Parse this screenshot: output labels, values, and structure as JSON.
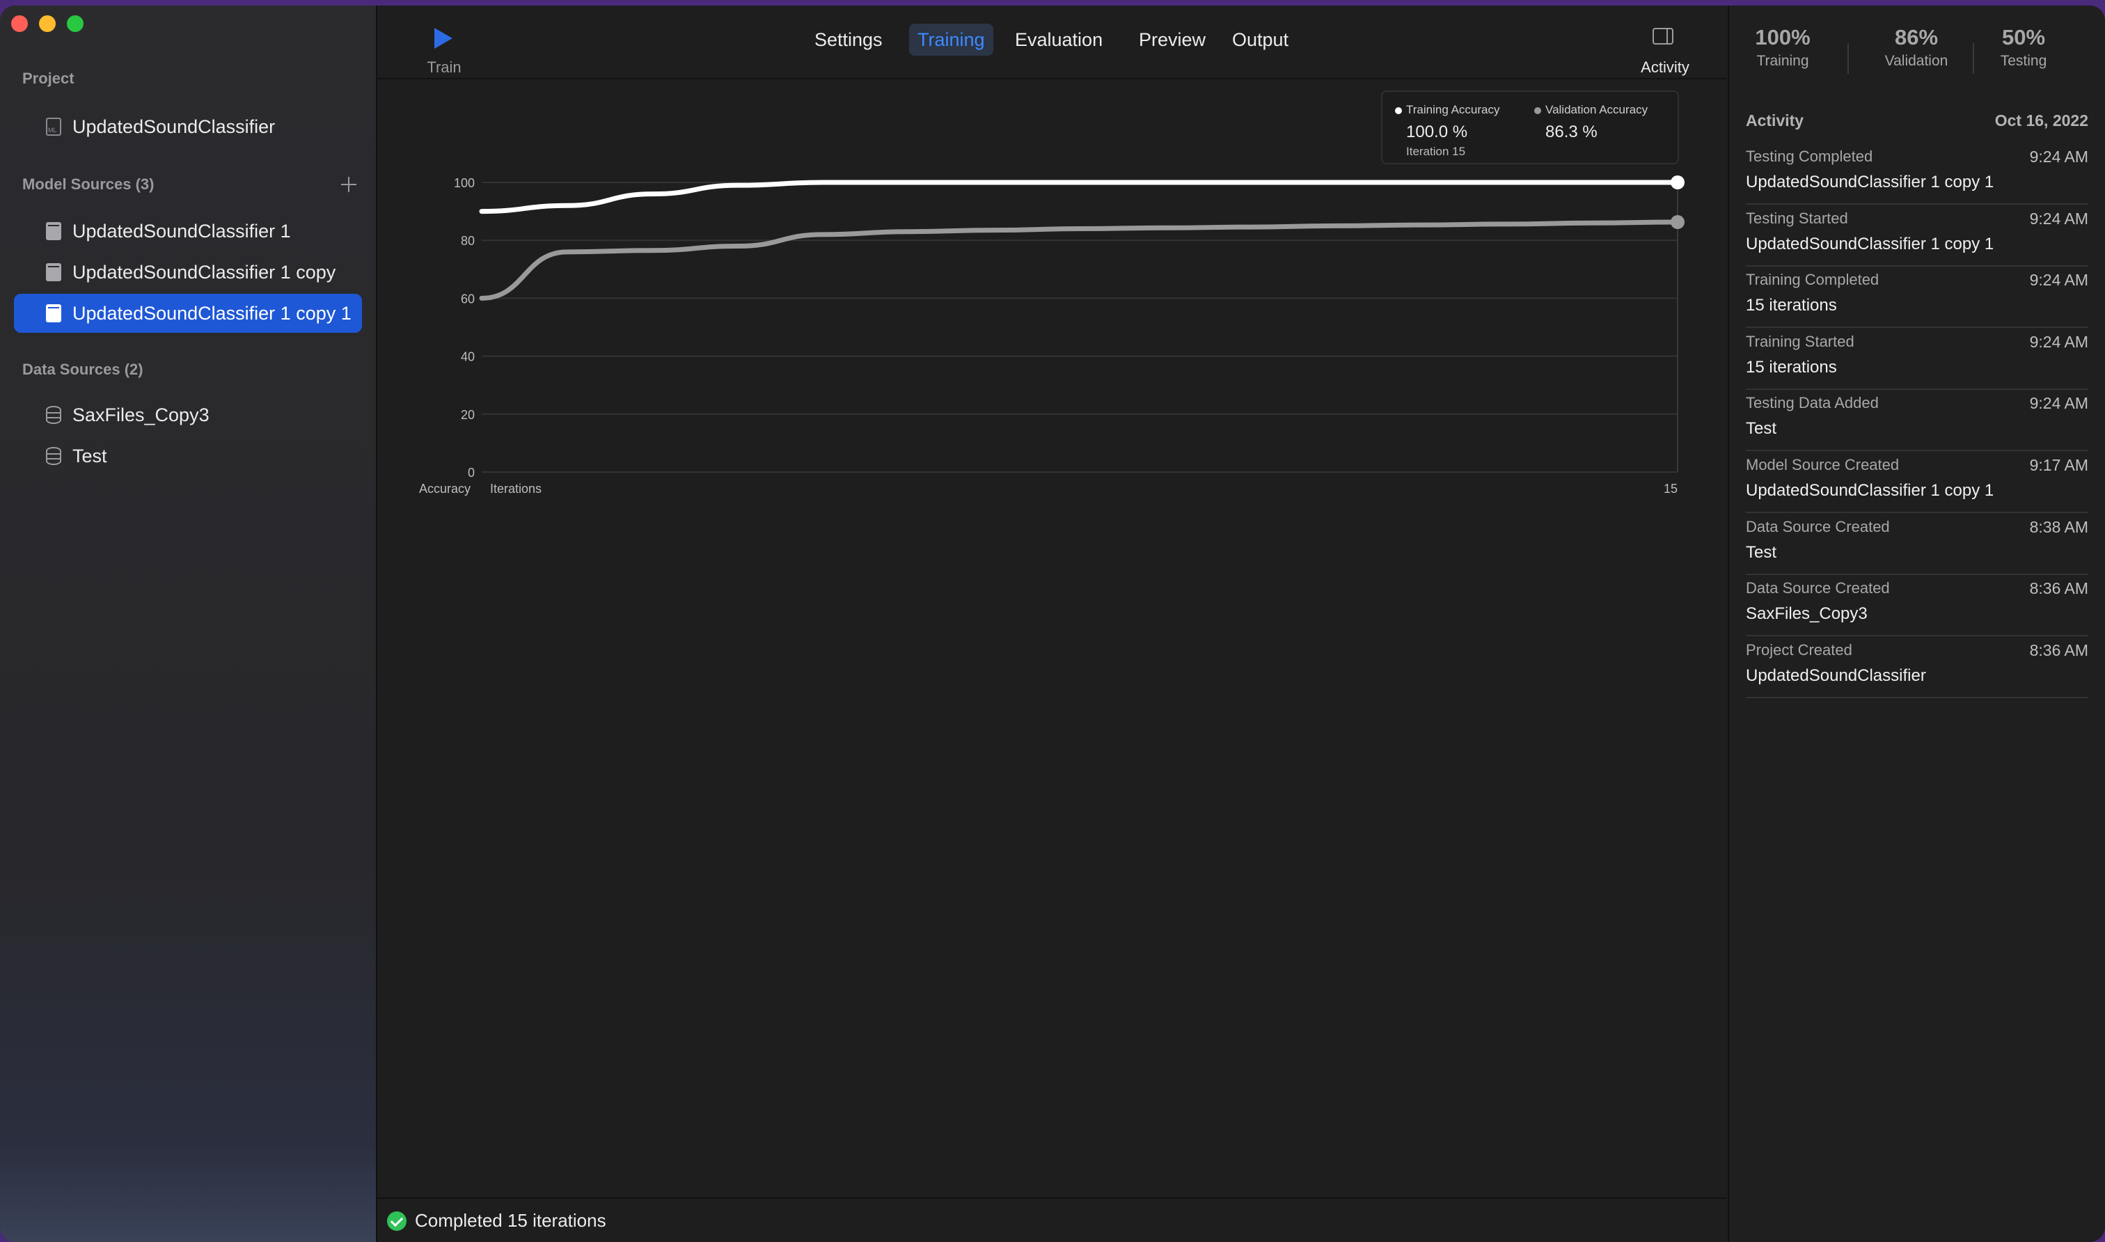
{
  "sidebar": {
    "project_header": "Project",
    "project_name": "UpdatedSoundClassifier",
    "model_sources_header": "Model Sources (3)",
    "model_sources": [
      {
        "label": "UpdatedSoundClassifier 1"
      },
      {
        "label": "UpdatedSoundClassifier 1 copy"
      },
      {
        "label": "UpdatedSoundClassifier 1 copy 1"
      }
    ],
    "selected_model_source": "UpdatedSoundClassifier 1 copy 1",
    "data_sources_header": "Data Sources (2)",
    "data_sources": [
      {
        "label": "SaxFiles_Copy3"
      },
      {
        "label": "Test"
      }
    ]
  },
  "toolbar": {
    "train_label": "Train",
    "tabs": [
      {
        "label": "Settings"
      },
      {
        "label": "Training"
      },
      {
        "label": "Evaluation"
      },
      {
        "label": "Preview"
      },
      {
        "label": "Output"
      }
    ],
    "active_tab": "Training",
    "activity_label": "Activity"
  },
  "chart_legend": {
    "training_name": "Training Accuracy",
    "training_value": "100.0 %",
    "iteration_label": "Iteration 15",
    "validation_name": "Validation Accuracy",
    "validation_value": "86.3 %"
  },
  "chart_data": {
    "type": "line",
    "ylabel": "Accuracy",
    "xlabel": "Iterations",
    "ylim": [
      0,
      100
    ],
    "xlim": [
      1,
      15
    ],
    "yticks": [
      0,
      20,
      40,
      60,
      80,
      100
    ],
    "xticks": [
      15
    ],
    "grid": true,
    "legend_position": "top-right",
    "series": [
      {
        "name": "Training Accuracy",
        "color": "#ffffff",
        "x": [
          1,
          2,
          3,
          4,
          5,
          6,
          7,
          8,
          9,
          10,
          11,
          12,
          13,
          14,
          15
        ],
        "values": [
          90,
          92,
          96,
          99,
          100,
          100,
          100,
          100,
          100,
          100,
          100,
          100,
          100,
          100,
          100
        ]
      },
      {
        "name": "Validation Accuracy",
        "color": "#9a9a9a",
        "x": [
          1,
          2,
          3,
          4,
          5,
          6,
          7,
          8,
          9,
          10,
          11,
          12,
          13,
          14,
          15
        ],
        "values": [
          60,
          76,
          76.5,
          78,
          82,
          83,
          83.5,
          84,
          84.3,
          84.6,
          85,
          85.3,
          85.6,
          86,
          86.3
        ]
      }
    ]
  },
  "status": {
    "text": "Completed 15 iterations",
    "color": "#30c157"
  },
  "metrics": [
    {
      "value": "100%",
      "label": "Training"
    },
    {
      "value": "86%",
      "label": "Validation"
    },
    {
      "value": "50%",
      "label": "Testing"
    }
  ],
  "activity": {
    "header": "Activity",
    "date": "Oct 16, 2022",
    "items": [
      {
        "event": "Testing Completed",
        "time": "9:24 AM",
        "target": "UpdatedSoundClassifier 1 copy 1"
      },
      {
        "event": "Testing Started",
        "time": "9:24 AM",
        "target": "UpdatedSoundClassifier 1 copy 1"
      },
      {
        "event": "Training Completed",
        "time": "9:24 AM",
        "target": "15 iterations"
      },
      {
        "event": "Training Started",
        "time": "9:24 AM",
        "target": "15 iterations"
      },
      {
        "event": "Testing Data Added",
        "time": "9:24 AM",
        "target": "Test"
      },
      {
        "event": "Model Source Created",
        "time": "9:17 AM",
        "target": "UpdatedSoundClassifier 1 copy 1"
      },
      {
        "event": "Data Source Created",
        "time": "8:38 AM",
        "target": "Test"
      },
      {
        "event": "Data Source Created",
        "time": "8:36 AM",
        "target": "SaxFiles_Copy3"
      },
      {
        "event": "Project Created",
        "time": "8:36 AM",
        "target": "UpdatedSoundClassifier"
      }
    ]
  },
  "colors": {
    "accent": "#1e58d6",
    "active_tab_text": "#3d8aff",
    "play_icon": "#2d6be4"
  }
}
